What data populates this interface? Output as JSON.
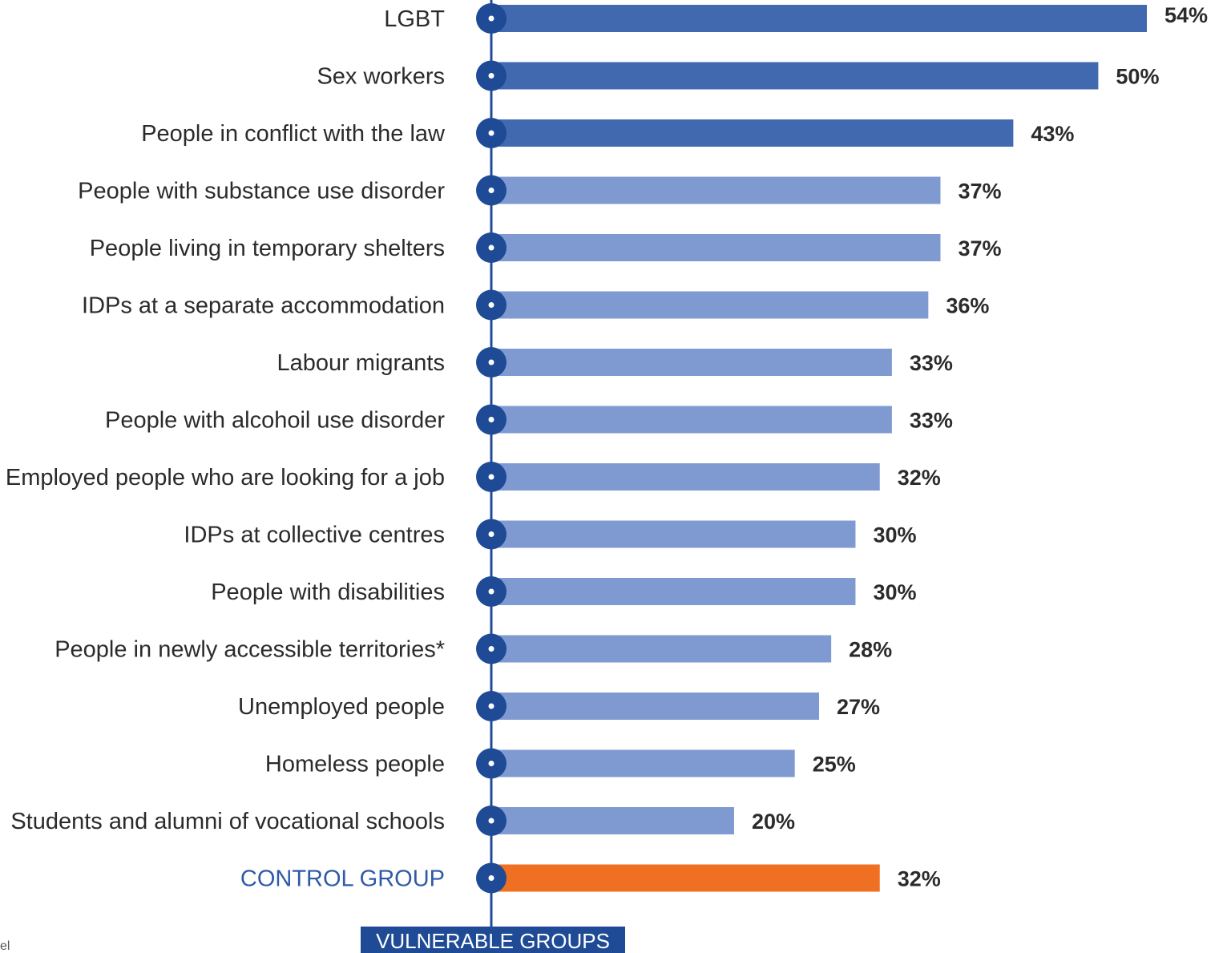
{
  "chart_data": {
    "type": "bar",
    "orientation": "horizontal",
    "categories": [
      "LGBT",
      "Sex workers",
      "People in conflict with the law",
      "People with substance use disorder",
      "People living in temporary shelters",
      "IDPs at a separate accommodation",
      "Labour migrants",
      "People with alcohoil use disorder",
      "Employed people who are looking for a job",
      "IDPs at collective centres",
      "People with disabilities",
      "People in newly accessible territories*",
      "Unemployed people",
      "Homeless people",
      "Students and alumni of vocational schools",
      "CONTROL GROUP"
    ],
    "values": [
      54,
      50,
      43,
      37,
      37,
      36,
      33,
      33,
      32,
      30,
      30,
      28,
      27,
      25,
      20,
      32
    ],
    "value_labels": [
      "54%",
      "50%",
      "43%",
      "37%",
      "37%",
      "36%",
      "33%",
      "33%",
      "32%",
      "30%",
      "30%",
      "28%",
      "27%",
      "25%",
      "20%",
      "32%"
    ],
    "bar_groups": [
      "top",
      "top",
      "top",
      "base",
      "base",
      "base",
      "base",
      "base",
      "base",
      "base",
      "base",
      "base",
      "base",
      "base",
      "base",
      "control"
    ],
    "unit": "%",
    "xlim": [
      0,
      54
    ],
    "grid": false,
    "legend": "none",
    "axis_label": "VULNERABLE GROUPS",
    "colors": {
      "top": "#4169b0",
      "base": "#7f9ad0",
      "control": "#f07023",
      "axis": "#1f4b96",
      "control_label": "#2f5aa8"
    }
  },
  "page": {
    "edge_mark": "el"
  }
}
